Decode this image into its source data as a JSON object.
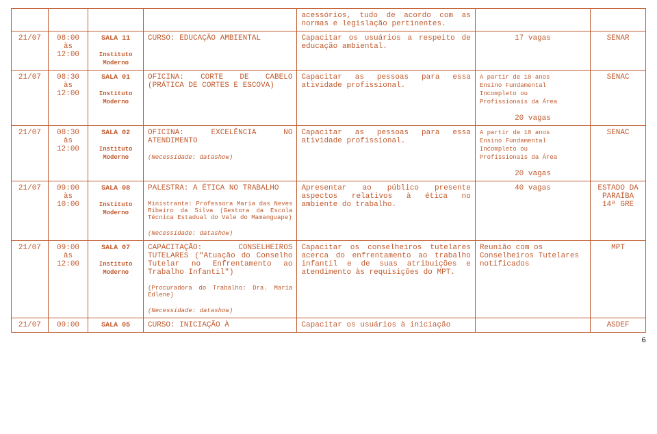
{
  "continuation_row": {
    "text": "acessórios, tudo de acordo com as normas e legislação pertinentes."
  },
  "rows": [
    {
      "date": "21/07",
      "time": "08:00\nàs\n12:00",
      "sala": "SALA 11",
      "inst": "Instituto\nModerno",
      "curso": "CURSO: EDUCAÇÃO AMBIENTAL",
      "desc": "Capacitar os usuários a respeito de educação ambiental.",
      "vagas": "17 vagas",
      "org": "SENAR"
    },
    {
      "date": "21/07",
      "time": "08:30\nàs\n12:00",
      "sala": "SALA 01",
      "inst": "Instituto\nModerno",
      "curso": "OFICINA: CORTE DE CABELO (PRÁTICA DE CORTES E ESCOVA)",
      "desc": "Capacitar as pessoas para essa atividade profissional.",
      "vagas_pre": "A partir de 18 anos\nEnsino Fundamental\nIncompleto ou\nProfissionais da Área",
      "vagas": "20 vagas",
      "org": "SENAC"
    },
    {
      "date": "21/07",
      "time": "08:30\nàs\n12:00",
      "sala": "SALA 02",
      "inst": "Instituto\nModerno",
      "curso": "OFICINA: EXCELÊNCIA NO ATENDIMENTO",
      "curso_note": "(Necessidade: datashow)",
      "desc": "Capacitar as pessoas para essa atividade profissional.",
      "vagas_pre": "A partir de 18 anos\nEnsino Fundamental\nIncompleto ou\nProfissionais da Área",
      "vagas": "20 vagas",
      "org": "SENAC"
    },
    {
      "date": "21/07",
      "time": "09:00\nàs\n10:00",
      "sala": "SALA 08",
      "inst": "Instituto\nModerno",
      "curso": "PALESTRA: A ÉTICA NO TRABALHO",
      "curso_sub": "Ministrante: Professora Maria das Neves Ribeiro da Silva (Gestora da Escola Técnica Estadual do Vale do Mamanguape)",
      "curso_note": "(Necessidade: datashow)",
      "desc": "Apresentar ao público presente aspectos relativos à ética no ambiente do trabalho.",
      "vagas": "40 vagas",
      "org": "ESTADO DA PARAÍBA\n14ª GRE"
    },
    {
      "date": "21/07",
      "time": "09:00\nàs\n12:00",
      "sala": "SALA 07",
      "inst": "Instituto\nModerno",
      "curso": "CAPACITAÇÃO: CONSELHEIROS TUTELARES (\"Atuação do Conselho Tutelar no Enfrentamento ao Trabalho Infantil\")",
      "curso_sub": "(Procuradora do Trabalho: Dra. Maria Edlene)",
      "curso_note": "(Necessidade: datashow)",
      "desc": "Capacitar os conselheiros tutelares acerca do enfrentamento ao trabalho infantil e de suas atribuições e atendimento às requisições do MPT.",
      "vagas_text": "Reunião com os Conselheiros Tutelares notificados",
      "org": "MPT"
    },
    {
      "date": "21/07",
      "time": "09:00",
      "sala": "SALA 05",
      "curso": "CURSO: INICIAÇÃO À",
      "desc": "Capacitar os usuários à iniciação",
      "org": "ASDEF"
    }
  ],
  "page_number": "6"
}
